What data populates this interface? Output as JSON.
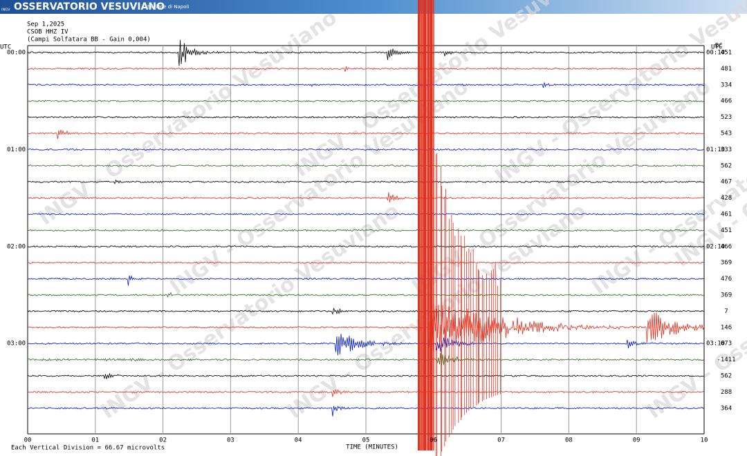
{
  "header": {
    "logo": "INGV",
    "title": "OSSERVATORIO VESUVIANO",
    "subtitle": "Sezione di Napoli"
  },
  "info": [
    "Sep 1,2025",
    "CSOB HHZ IV",
    "(Campi Solfatara BB  - Gain 0,004)"
  ],
  "left_axis": {
    "label": "UTC",
    "times": [
      "00:00",
      "01:00",
      "02:00",
      "03:00"
    ]
  },
  "right_axis": {
    "label": "UTC",
    "times": [
      "00:10",
      "01:10",
      "02:10",
      "03:10"
    ],
    "dc_label": "DC",
    "dc": [
      "451",
      "481",
      "334",
      "466",
      "523",
      "543",
      "333",
      "562",
      "467",
      "428",
      "461",
      "451",
      "466",
      "369",
      "476",
      "369",
      "7",
      "146",
      "673",
      "-1411",
      "562",
      "288",
      "364"
    ]
  },
  "x_axis": {
    "ticks": [
      "00",
      "01",
      "02",
      "03",
      "04",
      "05",
      "06",
      "07",
      "08",
      "09",
      "10"
    ],
    "label": "TIME (MINUTES)"
  },
  "footer": "Each Vertical Division =   66.67 microvolts",
  "watermark": "INGV - Osservatorio Vesuviano"
}
